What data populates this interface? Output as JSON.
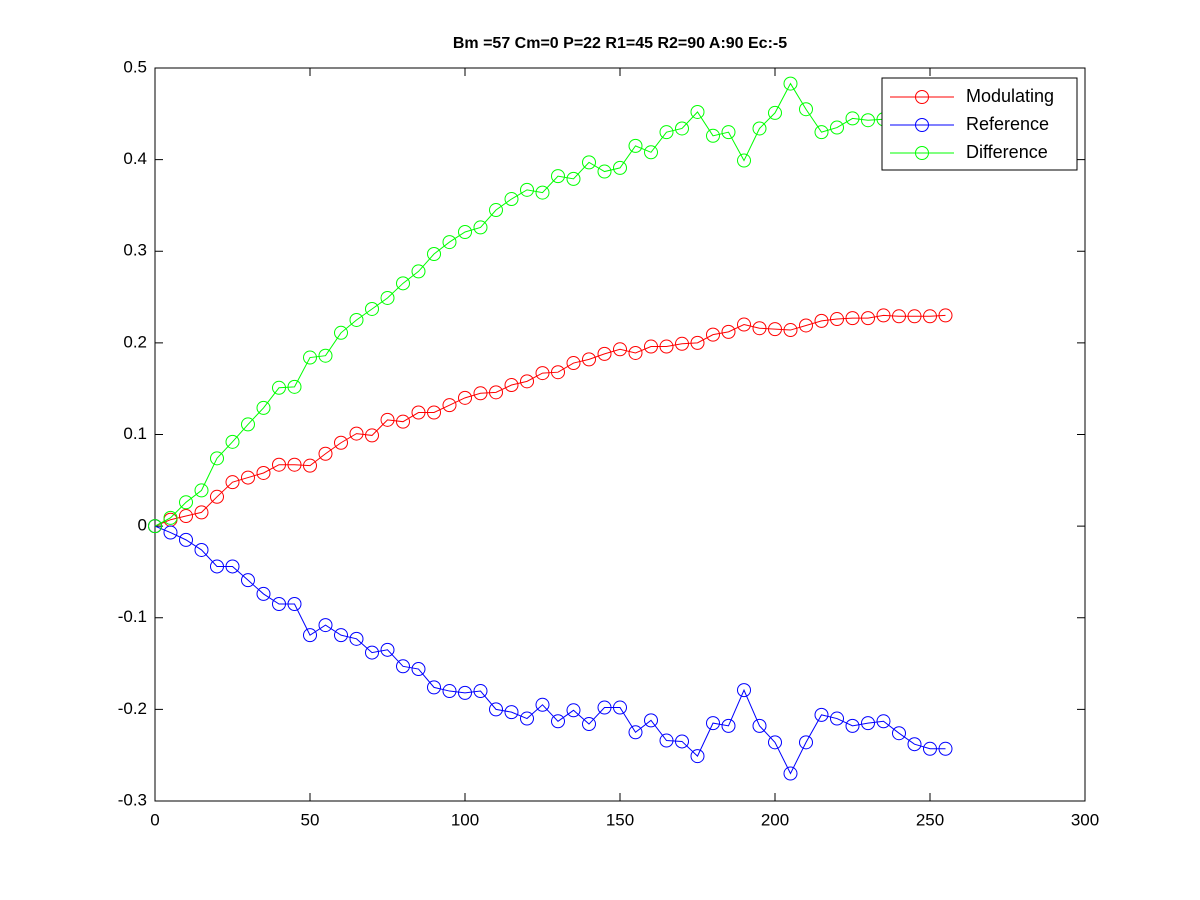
{
  "chart_data": {
    "type": "line",
    "title": "Bm =57  Cm=0  P=22  R1=45  R2=90  A:90  Ec:-5",
    "x": [
      0,
      5,
      10,
      15,
      20,
      25,
      30,
      35,
      40,
      45,
      50,
      55,
      60,
      65,
      70,
      75,
      80,
      85,
      90,
      95,
      100,
      105,
      110,
      115,
      120,
      125,
      130,
      135,
      140,
      145,
      150,
      155,
      160,
      165,
      170,
      175,
      180,
      185,
      190,
      195,
      200,
      205,
      210,
      215,
      220,
      225,
      230,
      235,
      240,
      245,
      250,
      255
    ],
    "series": [
      {
        "name": "Modulating",
        "color": "#ff0000",
        "values": [
          0,
          0.007,
          0.011,
          0.015,
          0.032,
          0.048,
          0.053,
          0.058,
          0.067,
          0.067,
          0.066,
          0.079,
          0.091,
          0.101,
          0.099,
          0.116,
          0.114,
          0.124,
          0.124,
          0.132,
          0.14,
          0.145,
          0.146,
          0.154,
          0.158,
          0.167,
          0.168,
          0.178,
          0.182,
          0.188,
          0.193,
          0.189,
          0.196,
          0.196,
          0.199,
          0.2,
          0.209,
          0.212,
          0.22,
          0.216,
          0.215,
          0.214,
          0.219,
          0.224,
          0.226,
          0.227,
          0.227,
          0.23,
          0.229,
          0.229,
          0.229,
          0.23
        ]
      },
      {
        "name": "Reference",
        "color": "#0000ff",
        "values": [
          0,
          -0.007,
          -0.015,
          -0.026,
          -0.044,
          -0.044,
          -0.059,
          -0.074,
          -0.085,
          -0.085,
          -0.119,
          -0.108,
          -0.119,
          -0.123,
          -0.138,
          -0.135,
          -0.153,
          -0.156,
          -0.176,
          -0.18,
          -0.182,
          -0.18,
          -0.2,
          -0.203,
          -0.21,
          -0.195,
          -0.213,
          -0.201,
          -0.216,
          -0.198,
          -0.198,
          -0.225,
          -0.212,
          -0.234,
          -0.235,
          -0.251,
          -0.215,
          -0.218,
          -0.179,
          -0.218,
          -0.236,
          -0.27,
          -0.236,
          -0.206,
          -0.21,
          -0.218,
          -0.215,
          -0.213,
          -0.226,
          -0.238,
          -0.243,
          -0.243
        ]
      },
      {
        "name": "Difference",
        "color": "#00ff00",
        "values": [
          0,
          0.009,
          0.026,
          0.039,
          0.074,
          0.092,
          0.111,
          0.129,
          0.151,
          0.152,
          0.184,
          0.186,
          0.211,
          0.225,
          0.237,
          0.249,
          0.265,
          0.278,
          0.297,
          0.31,
          0.321,
          0.326,
          0.345,
          0.357,
          0.367,
          0.364,
          0.382,
          0.379,
          0.397,
          0.387,
          0.391,
          0.415,
          0.408,
          0.43,
          0.434,
          0.452,
          0.426,
          0.43,
          0.399,
          0.434,
          0.451,
          0.483,
          0.455,
          0.43,
          0.435,
          0.445,
          0.443,
          0.444,
          0.455,
          0.467,
          0.472,
          0.473
        ]
      }
    ],
    "xlim": [
      0,
      300
    ],
    "xticks": [
      0,
      50,
      100,
      150,
      200,
      250,
      300
    ],
    "ylim": [
      -0.3,
      0.5
    ],
    "yticks": [
      -0.3,
      -0.2,
      -0.1,
      0,
      0.1,
      0.2,
      0.3,
      0.4,
      0.5
    ],
    "grid": false,
    "legend": "upper right"
  }
}
